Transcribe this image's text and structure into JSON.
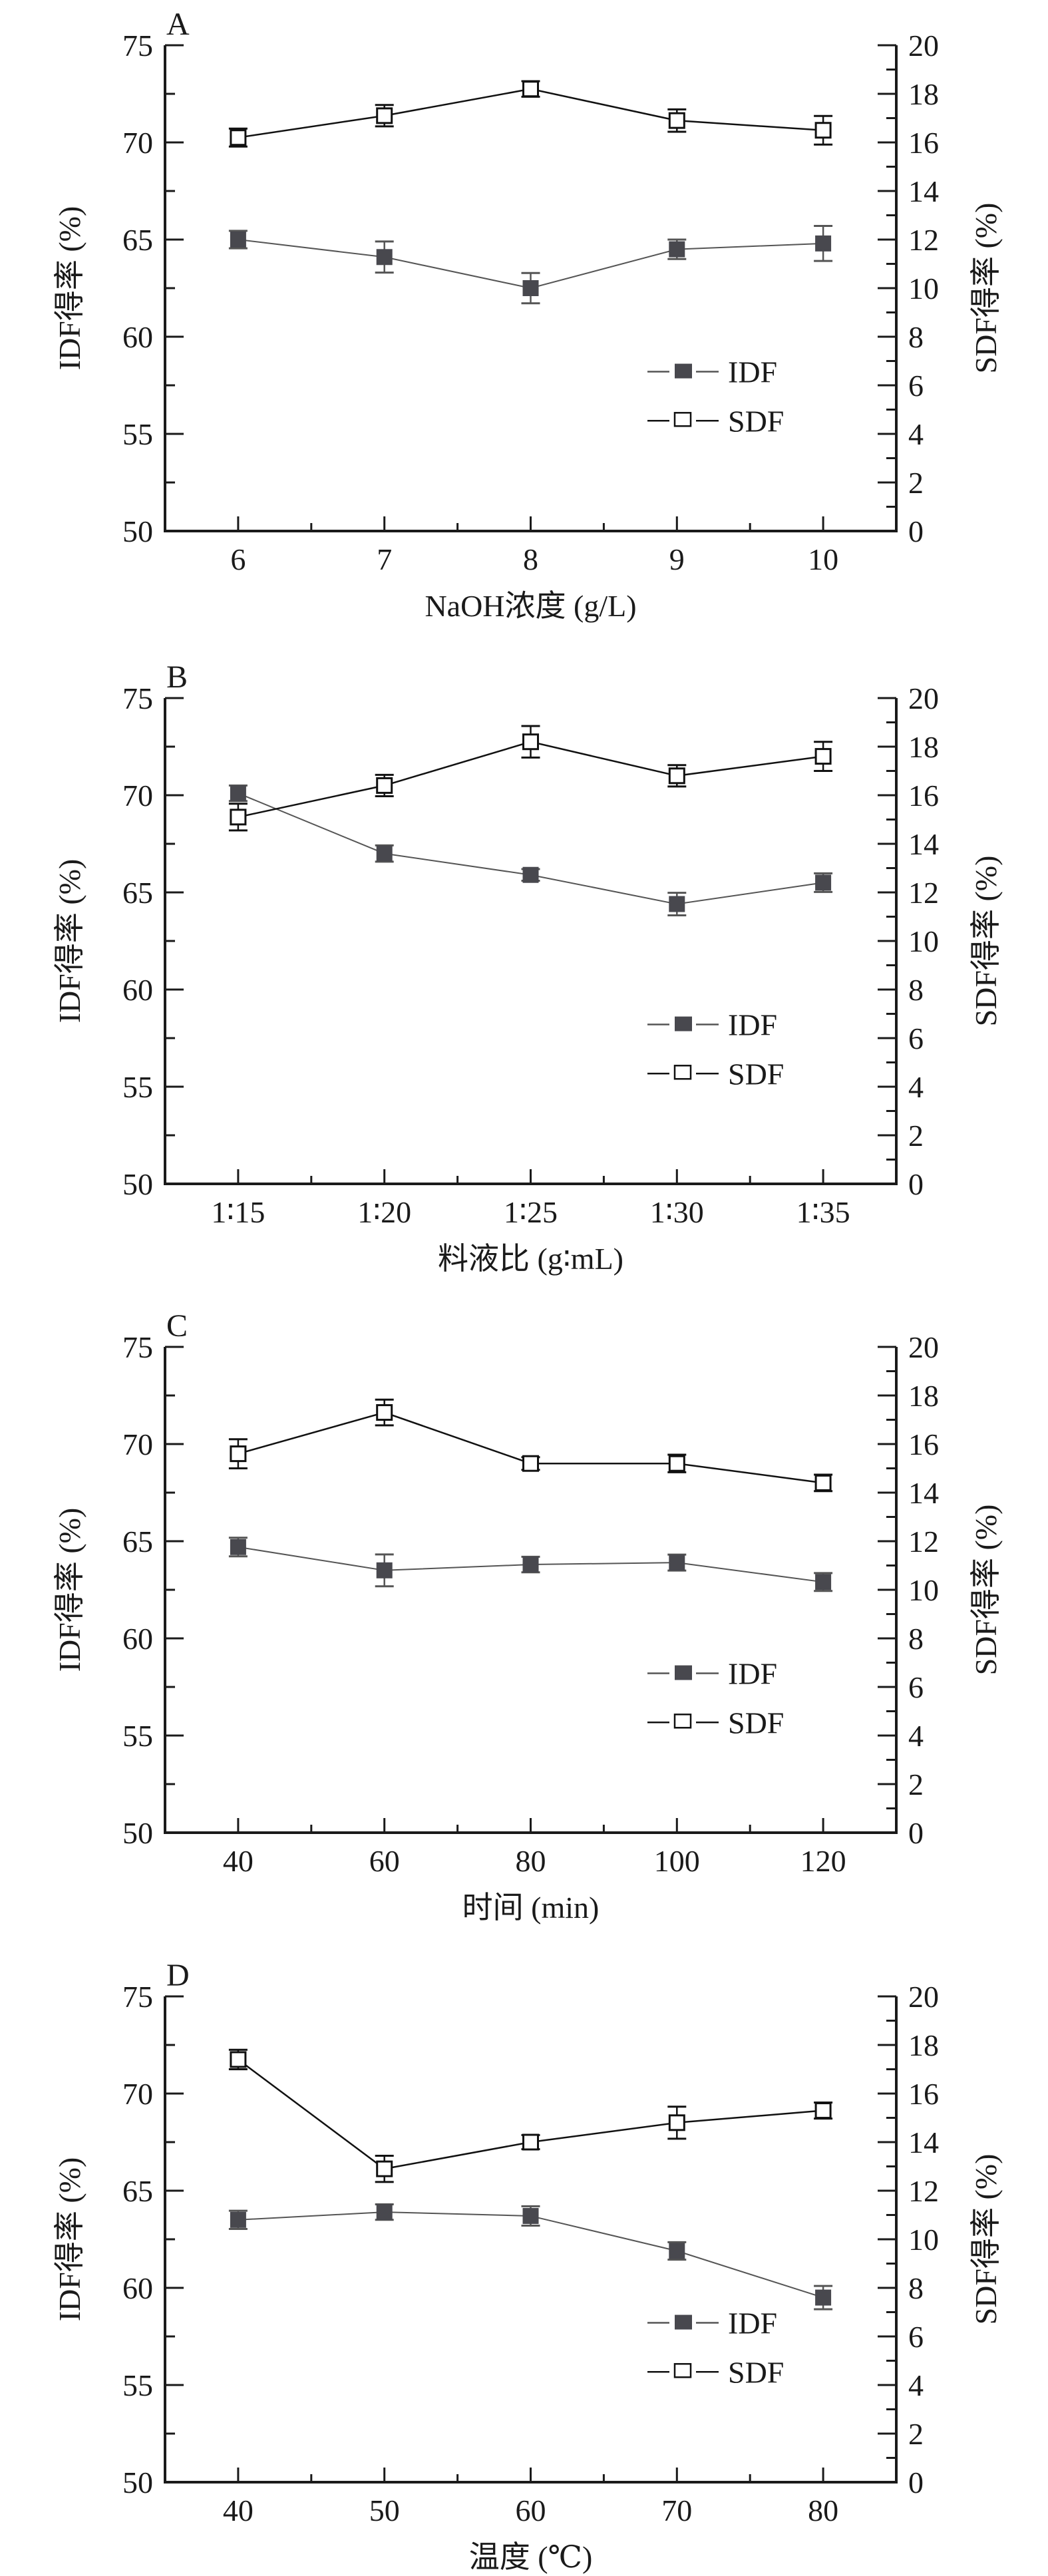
{
  "chart_data": [
    {
      "type": "line",
      "panel_label": "A",
      "categories": [
        "6",
        "7",
        "8",
        "9",
        "10"
      ],
      "xlabel": "NaOH浓度 (g/L)",
      "ylabel_left": "IDF得率 (%)",
      "ylabel_right": "SDF得率 (%)",
      "ylim_left": [
        50,
        75
      ],
      "ylim_right": [
        0,
        20
      ],
      "yticks_left": [
        "50",
        "55",
        "60",
        "65",
        "70",
        "75"
      ],
      "yticks_right": [
        "0",
        "2",
        "4",
        "6",
        "8",
        "10",
        "12",
        "14",
        "16",
        "18",
        "20"
      ],
      "grid": false,
      "legend_position": "center-right",
      "series": [
        {
          "name": "IDF",
          "axis": "left",
          "marker": "filled-square",
          "values": [
            65.0,
            64.1,
            62.5,
            64.5,
            64.8
          ],
          "errors": [
            0.45,
            0.8,
            0.78,
            0.5,
            0.9
          ]
        },
        {
          "name": "SDF",
          "axis": "right",
          "marker": "open-square",
          "values": [
            16.2,
            17.1,
            18.2,
            16.9,
            16.5
          ],
          "errors": [
            0.37,
            0.44,
            0.32,
            0.46,
            0.59
          ]
        }
      ]
    },
    {
      "type": "line",
      "panel_label": "B",
      "categories": [
        "1∶15",
        "1∶20",
        "1∶25",
        "1∶30",
        "1∶35"
      ],
      "xlabel": "料液比 (g∶mL)",
      "ylabel_left": "IDF得率 (%)",
      "ylabel_right": "SDF得率 (%)",
      "ylim_left": [
        50,
        75
      ],
      "ylim_right": [
        0,
        20
      ],
      "yticks_left": [
        "50",
        "55",
        "60",
        "65",
        "70",
        "75"
      ],
      "yticks_right": [
        "0",
        "2",
        "4",
        "6",
        "8",
        "10",
        "12",
        "14",
        "16",
        "18",
        "20"
      ],
      "grid": false,
      "legend_position": "center-right",
      "series": [
        {
          "name": "IDF",
          "axis": "left",
          "marker": "filled-square",
          "values": [
            70.1,
            67.0,
            65.9,
            64.4,
            65.5
          ],
          "errors": [
            0.4,
            0.42,
            0.3,
            0.58,
            0.48
          ]
        },
        {
          "name": "SDF",
          "axis": "right",
          "marker": "open-square",
          "values": [
            15.1,
            16.4,
            18.2,
            16.8,
            17.6
          ],
          "errors": [
            0.55,
            0.44,
            0.65,
            0.44,
            0.6
          ]
        }
      ]
    },
    {
      "type": "line",
      "panel_label": "C",
      "categories": [
        "40",
        "60",
        "80",
        "100",
        "120"
      ],
      "xlabel": "时间 (min)",
      "ylabel_left": "IDF得率 (%)",
      "ylabel_right": "SDF得率 (%)",
      "ylim_left": [
        50,
        75
      ],
      "ylim_right": [
        0,
        20
      ],
      "yticks_left": [
        "50",
        "55",
        "60",
        "65",
        "70",
        "75"
      ],
      "yticks_right": [
        "0",
        "2",
        "4",
        "6",
        "8",
        "10",
        "12",
        "14",
        "16",
        "18",
        "20"
      ],
      "grid": false,
      "legend_position": "center-right",
      "series": [
        {
          "name": "IDF",
          "axis": "left",
          "marker": "filled-square",
          "values": [
            64.7,
            63.5,
            63.8,
            63.9,
            62.9
          ],
          "errors": [
            0.48,
            0.82,
            0.4,
            0.41,
            0.46
          ]
        },
        {
          "name": "SDF",
          "axis": "right",
          "marker": "open-square",
          "values": [
            15.6,
            17.3,
            15.2,
            15.2,
            14.4
          ],
          "errors": [
            0.6,
            0.53,
            0.26,
            0.36,
            0.34
          ]
        }
      ]
    },
    {
      "type": "line",
      "panel_label": "D",
      "categories": [
        "40",
        "50",
        "60",
        "70",
        "80"
      ],
      "xlabel": "温度 (℃)",
      "ylabel_left": "IDF得率 (%)",
      "ylabel_right": "SDF得率 (%)",
      "ylim_left": [
        50,
        75
      ],
      "ylim_right": [
        0,
        20
      ],
      "yticks_left": [
        "50",
        "55",
        "60",
        "65",
        "70",
        "75"
      ],
      "yticks_right": [
        "0",
        "2",
        "4",
        "6",
        "8",
        "10",
        "12",
        "14",
        "16",
        "18",
        "20"
      ],
      "grid": false,
      "legend_position": "center-right",
      "series": [
        {
          "name": "IDF",
          "axis": "left",
          "marker": "filled-square",
          "values": [
            63.5,
            63.9,
            63.7,
            61.9,
            59.5
          ],
          "errors": [
            0.47,
            0.4,
            0.5,
            0.45,
            0.6
          ]
        },
        {
          "name": "SDF",
          "axis": "right",
          "marker": "open-square",
          "values": [
            17.4,
            12.9,
            14.0,
            14.8,
            15.3
          ],
          "errors": [
            0.4,
            0.54,
            0.29,
            0.66,
            0.33
          ]
        }
      ]
    }
  ],
  "colors": {
    "axis": "#1a1a1a",
    "idf_marker": "#48484e",
    "idf_line": "#555555",
    "sdf_marker_fill": "#ffffff",
    "sdf_marker_stroke": "#111111",
    "sdf_line": "#111111"
  }
}
